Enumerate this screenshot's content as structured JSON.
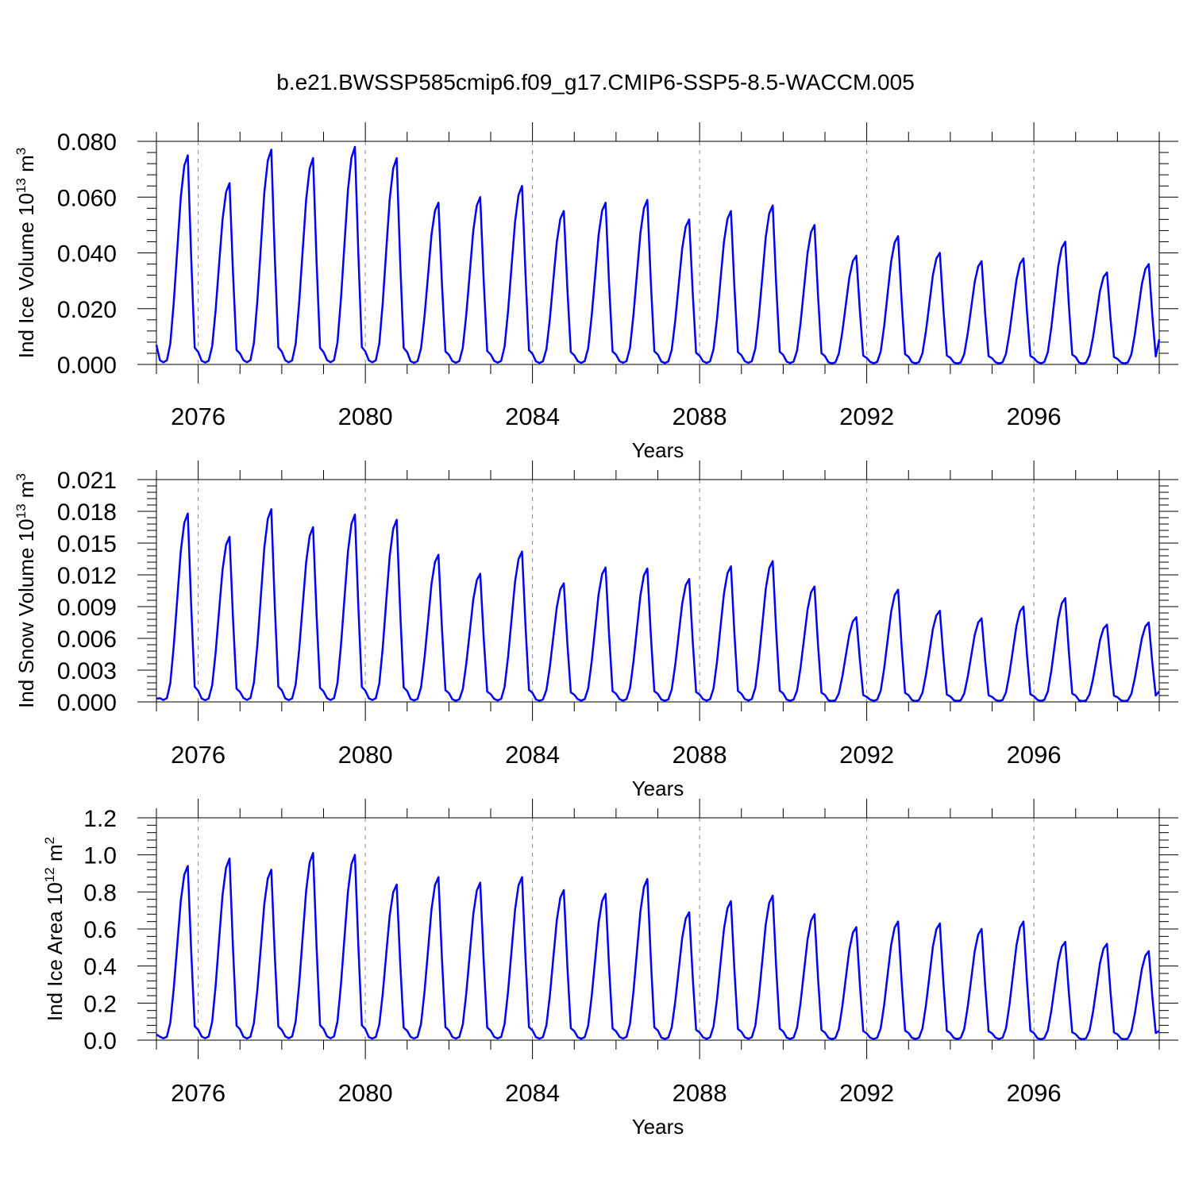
{
  "figure_title": "b.e21.BWSSP585cmip6.f09_g17.CMIP6-SSP5-8.5-WACCM.005",
  "series_color": "#0000ff",
  "chart_data": [
    {
      "type": "line",
      "title": "b.e21.BWSSP585cmip6.f09_g17.CMIP6-SSP5-8.5-WACCM.005",
      "xlabel": "Years",
      "ylabel": "Ind Ice Volume 10^13 m^3",
      "ylabel_parts": {
        "base": "Ind Ice Volume 10",
        "exp1": "13",
        "mid": " m",
        "exp2": "3"
      },
      "xlim": [
        2075,
        2099
      ],
      "ylim": [
        0,
        0.08
      ],
      "yticks": [
        0.0,
        0.02,
        0.04,
        0.06,
        0.08
      ],
      "ytick_labels": [
        "0.000",
        "0.020",
        "0.040",
        "0.060",
        "0.080"
      ],
      "xticks": [
        2076,
        2080,
        2084,
        2088,
        2092,
        2096
      ],
      "xtick_labels": [
        "2076",
        "2080",
        "2084",
        "2088",
        "2092",
        "2096"
      ],
      "grid": "dashed vertical at labeled years",
      "start_year": 2075,
      "points_per_year": 12,
      "year_start_value": 0.007,
      "end_value": 0.009,
      "peaks": [
        0.075,
        0.065,
        0.077,
        0.074,
        0.078,
        0.074,
        0.058,
        0.06,
        0.064,
        0.055,
        0.058,
        0.059,
        0.052,
        0.055,
        0.057,
        0.05,
        0.039,
        0.046,
        0.04,
        0.037,
        0.038,
        0.044,
        0.033,
        0.036
      ],
      "series": [
        {
          "color": "#0000ff"
        }
      ]
    },
    {
      "type": "line",
      "xlabel": "Years",
      "ylabel": "Ind Snow Volume 10^13 m^3",
      "ylabel_parts": {
        "base": "Ind Snow Volume 10",
        "exp1": "13",
        "mid": " m",
        "exp2": "3"
      },
      "xlim": [
        2075,
        2099
      ],
      "ylim": [
        0,
        0.021
      ],
      "yticks": [
        0.0,
        0.003,
        0.006,
        0.009,
        0.012,
        0.015,
        0.018,
        0.021
      ],
      "ytick_labels": [
        "0.000",
        "0.003",
        "0.006",
        "0.009",
        "0.012",
        "0.015",
        "0.018",
        "0.021"
      ],
      "xticks": [
        2076,
        2080,
        2084,
        2088,
        2092,
        2096
      ],
      "xtick_labels": [
        "2076",
        "2080",
        "2084",
        "2088",
        "2092",
        "2096"
      ],
      "grid": "dashed vertical at labeled years",
      "start_year": 2075,
      "points_per_year": 12,
      "year_start_value": 0.0003,
      "end_value": 0.001,
      "peaks": [
        0.0178,
        0.0156,
        0.0182,
        0.0165,
        0.0177,
        0.0172,
        0.0139,
        0.0121,
        0.0142,
        0.0112,
        0.0127,
        0.0126,
        0.0116,
        0.0128,
        0.0133,
        0.0109,
        0.008,
        0.0106,
        0.0086,
        0.0079,
        0.009,
        0.0098,
        0.0073,
        0.0075
      ],
      "series": [
        {
          "color": "#0000ff"
        }
      ]
    },
    {
      "type": "line",
      "xlabel": "Years",
      "ylabel": "Ind Ice Area 10^12 m^2",
      "ylabel_parts": {
        "base": "Ind Ice Area 10",
        "exp1": "12",
        "mid": " m",
        "exp2": "2"
      },
      "xlim": [
        2075,
        2099
      ],
      "ylim": [
        0,
        1.2
      ],
      "yticks": [
        0.0,
        0.2,
        0.4,
        0.6,
        0.8,
        1.0,
        1.2
      ],
      "ytick_labels": [
        "0.0",
        "0.2",
        "0.4",
        "0.6",
        "0.8",
        "1.0",
        "1.2"
      ],
      "xticks": [
        2076,
        2080,
        2084,
        2088,
        2092,
        2096
      ],
      "xtick_labels": [
        "2076",
        "2080",
        "2084",
        "2088",
        "2092",
        "2096"
      ],
      "grid": "dashed vertical at labeled years",
      "start_year": 2075,
      "points_per_year": 12,
      "year_start_value": 0.03,
      "end_value": 0.05,
      "peaks": [
        0.94,
        0.98,
        0.92,
        1.01,
        1.0,
        0.84,
        0.88,
        0.85,
        0.88,
        0.81,
        0.79,
        0.87,
        0.69,
        0.75,
        0.78,
        0.68,
        0.61,
        0.64,
        0.63,
        0.6,
        0.64,
        0.53,
        0.52,
        0.48
      ],
      "series": [
        {
          "color": "#0000ff"
        }
      ]
    }
  ]
}
